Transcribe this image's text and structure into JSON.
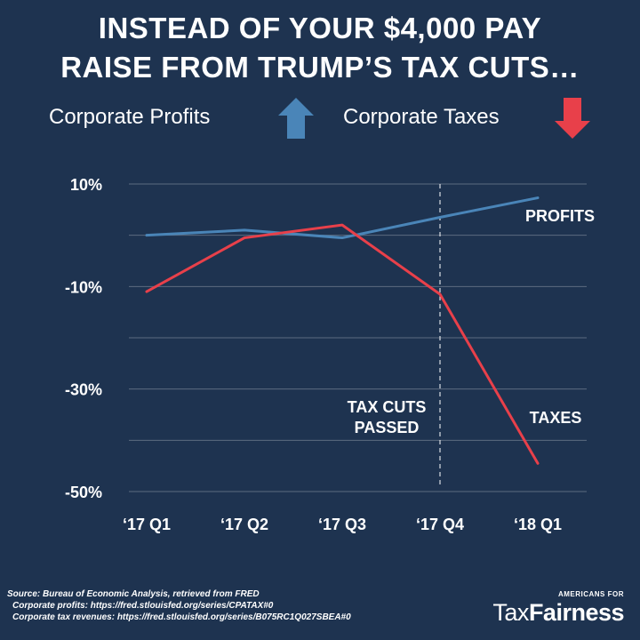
{
  "headline": {
    "line1": "INSTEAD OF YOUR $4,000 PAY",
    "line2": "RAISE FROM TRUMP’S TAX CUTS…"
  },
  "legend": {
    "profits_label": "Corporate Profits",
    "profits_icon": "up-arrow-icon",
    "profits_color": "#4a85b8",
    "taxes_label": "Corporate Taxes",
    "taxes_icon": "down-arrow-icon",
    "taxes_color": "#e8404a"
  },
  "chart_data": {
    "type": "line",
    "categories": [
      "‘17 Q1",
      "‘17 Q2",
      "‘17 Q3",
      "‘17 Q4",
      "‘18 Q1"
    ],
    "y_ticks": [
      10,
      0,
      -10,
      -20,
      -30,
      -40,
      -50
    ],
    "y_tick_labels": [
      "10%",
      "",
      "-10%",
      "",
      "-30%",
      "",
      "-50%"
    ],
    "ylim": [
      -50,
      10
    ],
    "grid": true,
    "series": [
      {
        "name": "PROFITS",
        "color": "#4a85b8",
        "values": [
          0,
          1,
          -0.5,
          3.5,
          7.3
        ]
      },
      {
        "name": "TAXES",
        "color": "#e8404a",
        "values": [
          -11,
          -0.5,
          2,
          -11.5,
          -44.5
        ]
      }
    ],
    "annotations": [
      {
        "text_lines": [
          "TAX CUTS",
          "PASSED"
        ],
        "x_category": "‘17 Q4",
        "style": "dashed-vertical-line"
      }
    ]
  },
  "footer": {
    "source_line1": "Source: Bureau of Economic Analysis, retrieved from FRED",
    "source_line2": "Corporate profits: https://fred.stlouisfed.org/series/CPATAX#0",
    "source_line3": "Corporate tax revenues: https://fred.stlouisfed.org/series/B075RC1Q027SBEA#0",
    "logo_top": "AMERICANS FOR",
    "logo_tax": "Tax",
    "logo_fairness": "Fairness"
  }
}
